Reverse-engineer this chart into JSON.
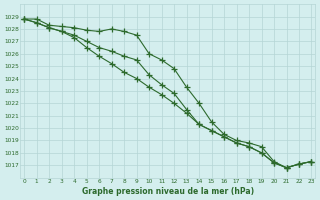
{
  "x": [
    0,
    1,
    2,
    3,
    4,
    5,
    6,
    7,
    8,
    9,
    10,
    11,
    12,
    13,
    14,
    15,
    16,
    17,
    18,
    19,
    20,
    21,
    22,
    23
  ],
  "line1": [
    1028.8,
    1028.8,
    1028.3,
    1028.2,
    1028.1,
    1027.9,
    1027.8,
    1028.0,
    1027.8,
    1027.5,
    1026.0,
    1025.5,
    1024.8,
    1023.3,
    1022.0,
    1020.5,
    1019.5,
    1019.0,
    1018.8,
    1018.5,
    1017.3,
    1016.8,
    1017.1,
    1017.3
  ],
  "line2": [
    1028.8,
    1028.5,
    1028.1,
    1027.8,
    1027.5,
    1027.0,
    1026.5,
    1026.2,
    1025.8,
    1025.5,
    1024.3,
    1023.5,
    1022.8,
    1021.5,
    1020.3,
    1019.8,
    1019.3,
    1018.8,
    1018.5,
    1018.0,
    1017.2,
    1016.8,
    1017.1,
    1017.3
  ],
  "line3": [
    1028.8,
    1028.5,
    1028.1,
    1027.8,
    1027.3,
    1026.5,
    1025.8,
    1025.2,
    1024.5,
    1024.0,
    1023.3,
    1022.7,
    1022.0,
    1021.2,
    1020.3,
    1019.8,
    1019.3,
    1018.8,
    1018.5,
    1018.0,
    1017.2,
    1016.8,
    1017.1,
    1017.3
  ],
  "line_color": "#2d6a2d",
  "bg_color": "#d4eeee",
  "grid_color": "#b5d5d5",
  "xlabel": "Graphe pression niveau de la mer (hPa)",
  "ylim_min": 1016.0,
  "ylim_max": 1030.0,
  "yticks": [
    1017,
    1018,
    1019,
    1020,
    1021,
    1022,
    1023,
    1024,
    1025,
    1026,
    1027,
    1028,
    1029
  ],
  "xticks": [
    0,
    1,
    2,
    3,
    4,
    5,
    6,
    7,
    8,
    9,
    10,
    11,
    12,
    13,
    14,
    15,
    16,
    17,
    18,
    19,
    20,
    21,
    22,
    23
  ]
}
